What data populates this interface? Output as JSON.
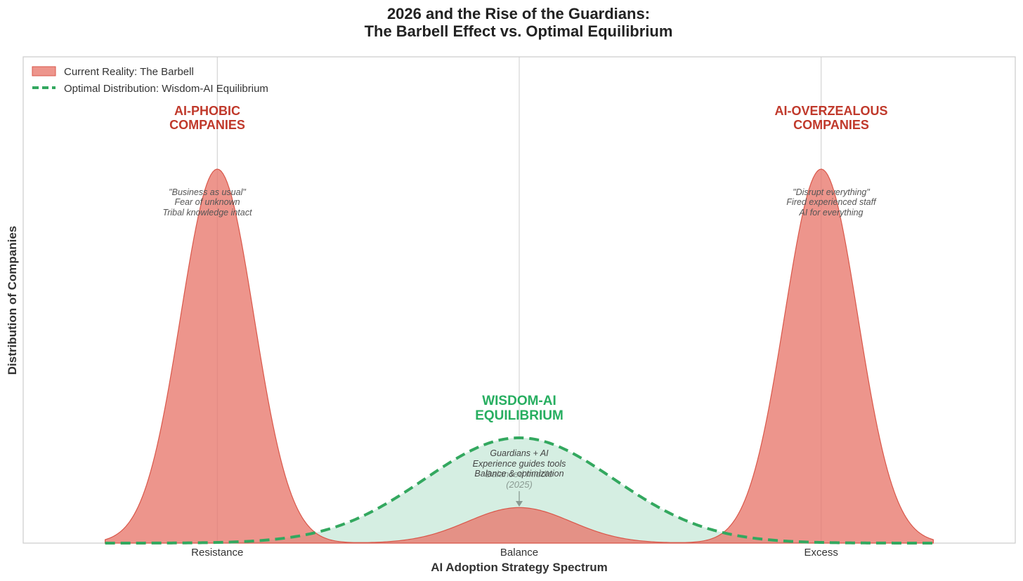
{
  "colors": {
    "barbell_fill": "#e8776b",
    "barbell_stroke": "#d9574a",
    "optimal_line": "#33a85f",
    "optimal_fill": "#d3ede0",
    "red_label": "#c0392b",
    "green_label": "#27ae60",
    "grid": "#cccccc",
    "frame": "#cccccc"
  },
  "chart_data": {
    "type": "area",
    "title": "2026 and the Rise of the Guardians:",
    "subtitle": "The Barbell Effect vs. Optimal Equilibrium",
    "xlabel": "AI Adoption Strategy Spectrum",
    "ylabel": "Distribution of Companies",
    "xlim": [
      -1.15,
      1.15
    ],
    "ylim": [
      0,
      1.0
    ],
    "grid": true,
    "legend_position": "top-left",
    "ticks": [
      {
        "x": -0.7,
        "label": "Resistance"
      },
      {
        "x": 0.0,
        "label": "Balance"
      },
      {
        "x": 0.7,
        "label": "Excess"
      }
    ],
    "series": [
      {
        "name": "Current Reality: The Barbell",
        "style": "filled",
        "x_range": [
          -0.96,
          0.96
        ],
        "components": [
          {
            "mean": -0.7,
            "sd": 0.085,
            "amp": 0.842
          },
          {
            "mean": 0.7,
            "sd": 0.085,
            "amp": 0.842
          },
          {
            "mean": 0.0,
            "sd": 0.12,
            "amp": 0.08
          }
        ]
      },
      {
        "name": "Optimal Distribution: Wisdom-AI Equilibrium",
        "style": "dashed",
        "x_range": [
          -0.96,
          0.96
        ],
        "components": [
          {
            "mean": 0.0,
            "sd": 0.22,
            "amp": 0.237
          }
        ]
      }
    ],
    "annotations": {
      "left_title": [
        "AI-PHOBIC",
        "COMPANIES"
      ],
      "left_desc": [
        "\"Business as usual\"",
        "Fear of unknown",
        "Tribal knowledge intact"
      ],
      "right_title": [
        "AI-OVERZEALOUS",
        "COMPANIES"
      ],
      "right_desc": [
        "\"Disrupt everything\"",
        "Fired experienced staff",
        "AI for everything"
      ],
      "center_title": [
        "WISDOM-AI",
        "EQUILIBRIUM"
      ],
      "center_desc": [
        "Guardians + AI",
        "Experience guides tools",
        "Balance & optimization"
      ],
      "center_note": [
        "Balanced middle",
        "(2025)"
      ]
    }
  }
}
